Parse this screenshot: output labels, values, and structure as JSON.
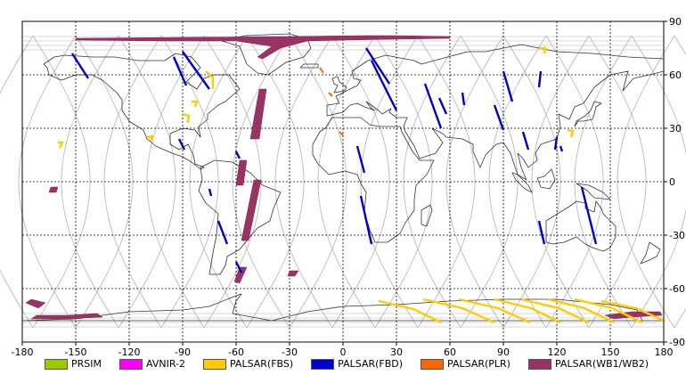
{
  "map": {
    "lon_ticks": [
      "-180",
      "-150",
      "-120",
      "-90",
      "-60",
      "-30",
      "0",
      "30",
      "60",
      "90",
      "120",
      "150",
      "180"
    ],
    "lat_ticks": [
      "90",
      "60",
      "30",
      "0",
      "-30",
      "-60",
      "-90"
    ],
    "colors": {
      "land": "#333333",
      "grid": "#000000",
      "orbit": "#b3b3b3",
      "background": "#ffffff"
    }
  },
  "legend": [
    {
      "label": "PRSIM",
      "color": "#99cc00"
    },
    {
      "label": "AVNIR-2",
      "color": "#ff00ff"
    },
    {
      "label": "PALSAR(FBS)",
      "color": "#ffcc00"
    },
    {
      "label": "PALSAR(FBD)",
      "color": "#0000cc"
    },
    {
      "label": "PALSAR(PLR)",
      "color": "#ff6600"
    },
    {
      "label": "PALSAR(WB1/WB2)",
      "color": "#993366"
    }
  ],
  "swaths": {
    "wb": [
      [
        [
          -150,
          80.5
        ],
        [
          -90,
          81
        ],
        [
          -30,
          81.5
        ],
        [
          10,
          82
        ],
        [
          30,
          82
        ],
        [
          60,
          81.5
        ],
        [
          60,
          80.5
        ],
        [
          30,
          80
        ],
        [
          0,
          79.5
        ],
        [
          -20,
          79
        ],
        [
          -35,
          75
        ],
        [
          -40,
          72
        ],
        [
          -45,
          69
        ],
        [
          -48,
          70
        ],
        [
          -40,
          76
        ],
        [
          -60,
          79
        ],
        [
          -100,
          79
        ],
        [
          -150,
          79.5
        ]
      ],
      [
        [
          -47,
          52
        ],
        [
          -43,
          52
        ],
        [
          -47,
          24
        ],
        [
          -52,
          24
        ]
      ],
      [
        [
          -58,
          12
        ],
        [
          -54,
          12
        ],
        [
          -56,
          -2
        ],
        [
          -60,
          -2
        ]
      ],
      [
        [
          -50,
          1
        ],
        [
          -46,
          1
        ],
        [
          -53,
          -33
        ],
        [
          -57,
          -33
        ]
      ],
      [
        [
          -58,
          -48
        ],
        [
          -54,
          -48
        ],
        [
          -58,
          -57
        ],
        [
          -61,
          -56
        ]
      ],
      [
        [
          -30,
          -50
        ],
        [
          -25,
          -50
        ],
        [
          -27,
          -53
        ],
        [
          -31,
          -53
        ]
      ],
      [
        [
          -175,
          -66
        ],
        [
          -167,
          -68
        ],
        [
          -171,
          -71
        ],
        [
          -178,
          -68
        ]
      ],
      [
        [
          -172,
          -75
        ],
        [
          -155,
          -75
        ],
        [
          -138,
          -74
        ],
        [
          -135,
          -76
        ],
        [
          -155,
          -77
        ],
        [
          -175,
          -77
        ]
      ],
      [
        [
          -164,
          -3
        ],
        [
          -160,
          -3
        ],
        [
          -161,
          -6
        ],
        [
          -165,
          -6
        ]
      ],
      [
        [
          147,
          -75
        ],
        [
          162,
          -73
        ],
        [
          178,
          -73
        ],
        [
          179,
          -75
        ],
        [
          162,
          -76
        ],
        [
          152,
          -77
        ]
      ]
    ],
    "fbd": [
      [
        [
          -152,
          72
        ],
        [
          -143,
          58
        ]
      ],
      [
        [
          -90,
          73
        ],
        [
          -75,
          52
        ]
      ],
      [
        [
          -95,
          70
        ],
        [
          -88,
          54
        ]
      ],
      [
        [
          -92,
          24
        ],
        [
          -89,
          18
        ]
      ],
      [
        [
          -60,
          -45
        ],
        [
          -57,
          -51
        ]
      ],
      [
        [
          -70,
          -22
        ],
        [
          -65,
          -35
        ]
      ],
      [
        [
          -75,
          -4
        ],
        [
          -74,
          -8
        ]
      ],
      [
        [
          -60,
          17
        ],
        [
          -58,
          13
        ]
      ],
      [
        [
          13,
          75
        ],
        [
          26,
          55
        ]
      ],
      [
        [
          16,
          68
        ],
        [
          30,
          40
        ]
      ],
      [
        [
          8,
          20
        ],
        [
          12,
          5
        ]
      ],
      [
        [
          10,
          -8
        ],
        [
          16,
          -35
        ]
      ],
      [
        [
          46,
          55
        ],
        [
          55,
          30
        ]
      ],
      [
        [
          54,
          47
        ],
        [
          58,
          38
        ]
      ],
      [
        [
          67,
          50
        ],
        [
          68,
          43
        ]
      ],
      [
        [
          90,
          62
        ],
        [
          95,
          45
        ]
      ],
      [
        [
          85,
          43
        ],
        [
          90,
          29
        ]
      ],
      [
        [
          101,
          28
        ],
        [
          104,
          18
        ]
      ],
      [
        [
          111,
          62
        ],
        [
          110,
          53
        ]
      ],
      [
        [
          120,
          25
        ],
        [
          119,
          18
        ]
      ],
      [
        [
          110,
          -22
        ],
        [
          113,
          -35
        ]
      ],
      [
        [
          122,
          20
        ],
        [
          123,
          17
        ]
      ],
      [
        [
          134,
          -3
        ],
        [
          142,
          -35
        ]
      ]
    ],
    "fbs": [
      [
        [
          -90,
          38
        ],
        [
          -87,
          33
        ]
      ],
      [
        [
          -77,
          62
        ],
        [
          -73,
          52
        ]
      ],
      [
        [
          -85,
          45
        ],
        [
          -83,
          42
        ]
      ],
      [
        [
          -160,
          22
        ],
        [
          -159,
          19
        ]
      ],
      [
        [
          -110,
          25
        ],
        [
          -108,
          23
        ]
      ],
      [
        [
          110,
          75
        ],
        [
          113,
          72
        ]
      ],
      [
        [
          126,
          29
        ],
        [
          128,
          25
        ]
      ],
      [
        [
          20,
          -67
        ],
        [
          55,
          -79
        ]
      ],
      [
        [
          45,
          -66
        ],
        [
          85,
          -79
        ]
      ],
      [
        [
          65,
          -66
        ],
        [
          105,
          -79
        ]
      ],
      [
        [
          85,
          -66
        ],
        [
          122,
          -79
        ]
      ],
      [
        [
          100,
          -66
        ],
        [
          138,
          -79
        ]
      ],
      [
        [
          115,
          -66
        ],
        [
          152,
          -79
        ]
      ],
      [
        [
          130,
          -66
        ],
        [
          168,
          -79
        ]
      ],
      [
        [
          145,
          -67
        ],
        [
          180,
          -78
        ]
      ]
    ],
    "plr": [
      [
        [
          -13,
          64
        ],
        [
          -11,
          61
        ]
      ],
      [
        [
          -8,
          50
        ],
        [
          -6,
          48
        ]
      ],
      [
        [
          -2,
          28
        ],
        [
          0,
          26
        ]
      ]
    ]
  }
}
